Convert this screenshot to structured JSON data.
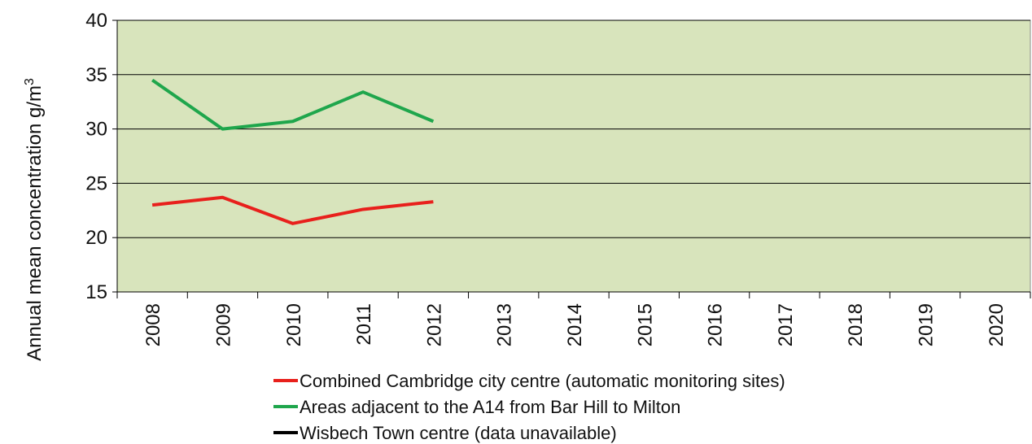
{
  "chart_data": {
    "type": "line",
    "ylabel_main": "Annual mean concentration g/m",
    "ylabel_sup": "3",
    "ylim": [
      15,
      40
    ],
    "yticks": [
      15,
      20,
      25,
      30,
      35,
      40
    ],
    "categories": [
      "2008",
      "2009",
      "2010",
      "2011",
      "2012",
      "2013",
      "2014",
      "2015",
      "2016",
      "2017",
      "2018",
      "2019",
      "2020"
    ],
    "grid": true,
    "legend_position": "bottom",
    "plot_background": "#d8e4bc",
    "series": [
      {
        "name": "Combined Cambridge city centre (automatic monitoring sites)",
        "color": "#e8201c",
        "values": [
          23.0,
          23.7,
          21.3,
          22.6,
          23.3,
          null,
          null,
          null,
          null,
          null,
          null,
          null,
          null
        ]
      },
      {
        "name": "Areas adjacent to the A14 from Bar Hill to Milton",
        "color": "#1fa64c",
        "values": [
          34.5,
          30.0,
          30.7,
          33.4,
          30.7,
          null,
          null,
          null,
          null,
          null,
          null,
          null,
          null
        ]
      },
      {
        "name": "Wisbech Town centre (data unavailable)",
        "color": "#000000",
        "values": [
          null,
          null,
          null,
          null,
          null,
          null,
          null,
          null,
          null,
          null,
          null,
          null,
          null
        ]
      }
    ]
  }
}
